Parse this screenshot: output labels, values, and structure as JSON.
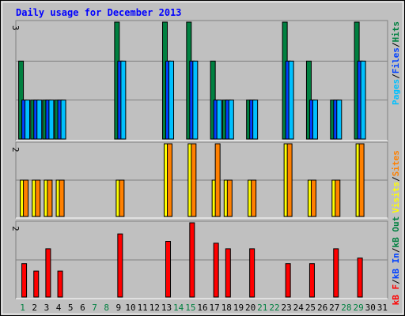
{
  "chart_data": {
    "type": "bar",
    "title": "Daily usage for December 2013",
    "days": [
      "1",
      "2",
      "3",
      "4",
      "5",
      "6",
      "7",
      "8",
      "9",
      "10",
      "11",
      "12",
      "13",
      "14",
      "15",
      "16",
      "17",
      "18",
      "19",
      "20",
      "21",
      "22",
      "23",
      "24",
      "25",
      "26",
      "27",
      "28",
      "29",
      "30",
      "31"
    ],
    "weekend_days": [
      1,
      7,
      8,
      14,
      15,
      21,
      22,
      28,
      29
    ],
    "panels": [
      {
        "id": "hits-files-pages",
        "ymax_label": "3",
        "ymax": 3,
        "series": [
          {
            "name": "Hits",
            "color": "#008040",
            "values": [
              2,
              1,
              1,
              1,
              0,
              0,
              0,
              0,
              3,
              0,
              0,
              0,
              3,
              0,
              3,
              0,
              2,
              1,
              0,
              1,
              0,
              0,
              3,
              0,
              2,
              0,
              1,
              0,
              3,
              0,
              0
            ]
          },
          {
            "name": "Files",
            "color": "#0040ff",
            "values": [
              1,
              1,
              1,
              1,
              0,
              0,
              0,
              0,
              2,
              0,
              0,
              0,
              2,
              0,
              2,
              0,
              1,
              1,
              0,
              1,
              0,
              0,
              2,
              0,
              1,
              0,
              1,
              0,
              2,
              0,
              0
            ]
          },
          {
            "name": "Pages",
            "color": "#00c0ff",
            "values": [
              1,
              1,
              1,
              1,
              0,
              0,
              0,
              0,
              2,
              0,
              0,
              0,
              2,
              0,
              2,
              0,
              1,
              1,
              0,
              1,
              0,
              0,
              2,
              0,
              1,
              0,
              1,
              0,
              2,
              0,
              0
            ]
          }
        ]
      },
      {
        "id": "visits-sites",
        "ymax_label": "2",
        "ymax": 2,
        "series": [
          {
            "name": "Visits",
            "color": "#ffff00",
            "values": [
              1,
              1,
              1,
              1,
              0,
              0,
              0,
              0,
              1,
              0,
              0,
              0,
              2,
              0,
              2,
              0,
              1,
              1,
              0,
              1,
              0,
              0,
              2,
              0,
              1,
              0,
              1,
              0,
              2,
              0,
              0
            ]
          },
          {
            "name": "Sites",
            "color": "#ff8000",
            "values": [
              1,
              1,
              1,
              1,
              0,
              0,
              0,
              0,
              1,
              0,
              0,
              0,
              2,
              0,
              2,
              0,
              2,
              1,
              0,
              1,
              0,
              0,
              2,
              0,
              1,
              0,
              1,
              0,
              2,
              0,
              0
            ]
          }
        ]
      },
      {
        "id": "kbytes",
        "ymax_label": "2",
        "ymax": 2,
        "series": [
          {
            "name": "kB F",
            "color": "#ff0000",
            "values": [
              0.9,
              0.7,
              1.3,
              0.7,
              0,
              0,
              0,
              0,
              1.7,
              0,
              0,
              0,
              1.5,
              0,
              2.0,
              0,
              1.45,
              1.3,
              0,
              1.3,
              0,
              0,
              0.9,
              0,
              0.9,
              0,
              1.3,
              0,
              1.05,
              0,
              0
            ]
          }
        ]
      }
    ],
    "right_legend": [
      {
        "parts": [
          {
            "text": "Pages",
            "color": "#00c0ff"
          },
          {
            "text": "/",
            "color": "#000000"
          },
          {
            "text": "Files",
            "color": "#0040ff"
          },
          {
            "text": "/",
            "color": "#000000"
          },
          {
            "text": "Hits",
            "color": "#008040"
          }
        ]
      },
      {
        "parts": [
          {
            "text": "Visits",
            "color": "#ffff00"
          },
          {
            "text": "/",
            "color": "#000000"
          },
          {
            "text": "Sites",
            "color": "#ff8000"
          }
        ]
      },
      {
        "parts": [
          {
            "text": "kB F",
            "color": "#ff0000"
          },
          {
            "text": "/",
            "color": "#000000"
          },
          {
            "text": "kB In",
            "color": "#0040ff"
          },
          {
            "text": "/",
            "color": "#000000"
          },
          {
            "text": "kB Out",
            "color": "#008040"
          }
        ]
      }
    ],
    "colors": {
      "background": "#c0c0c0",
      "title": "#0000ff",
      "weekday_label": "#000000",
      "weekend_label": "#008040",
      "grid": "#808080"
    }
  }
}
